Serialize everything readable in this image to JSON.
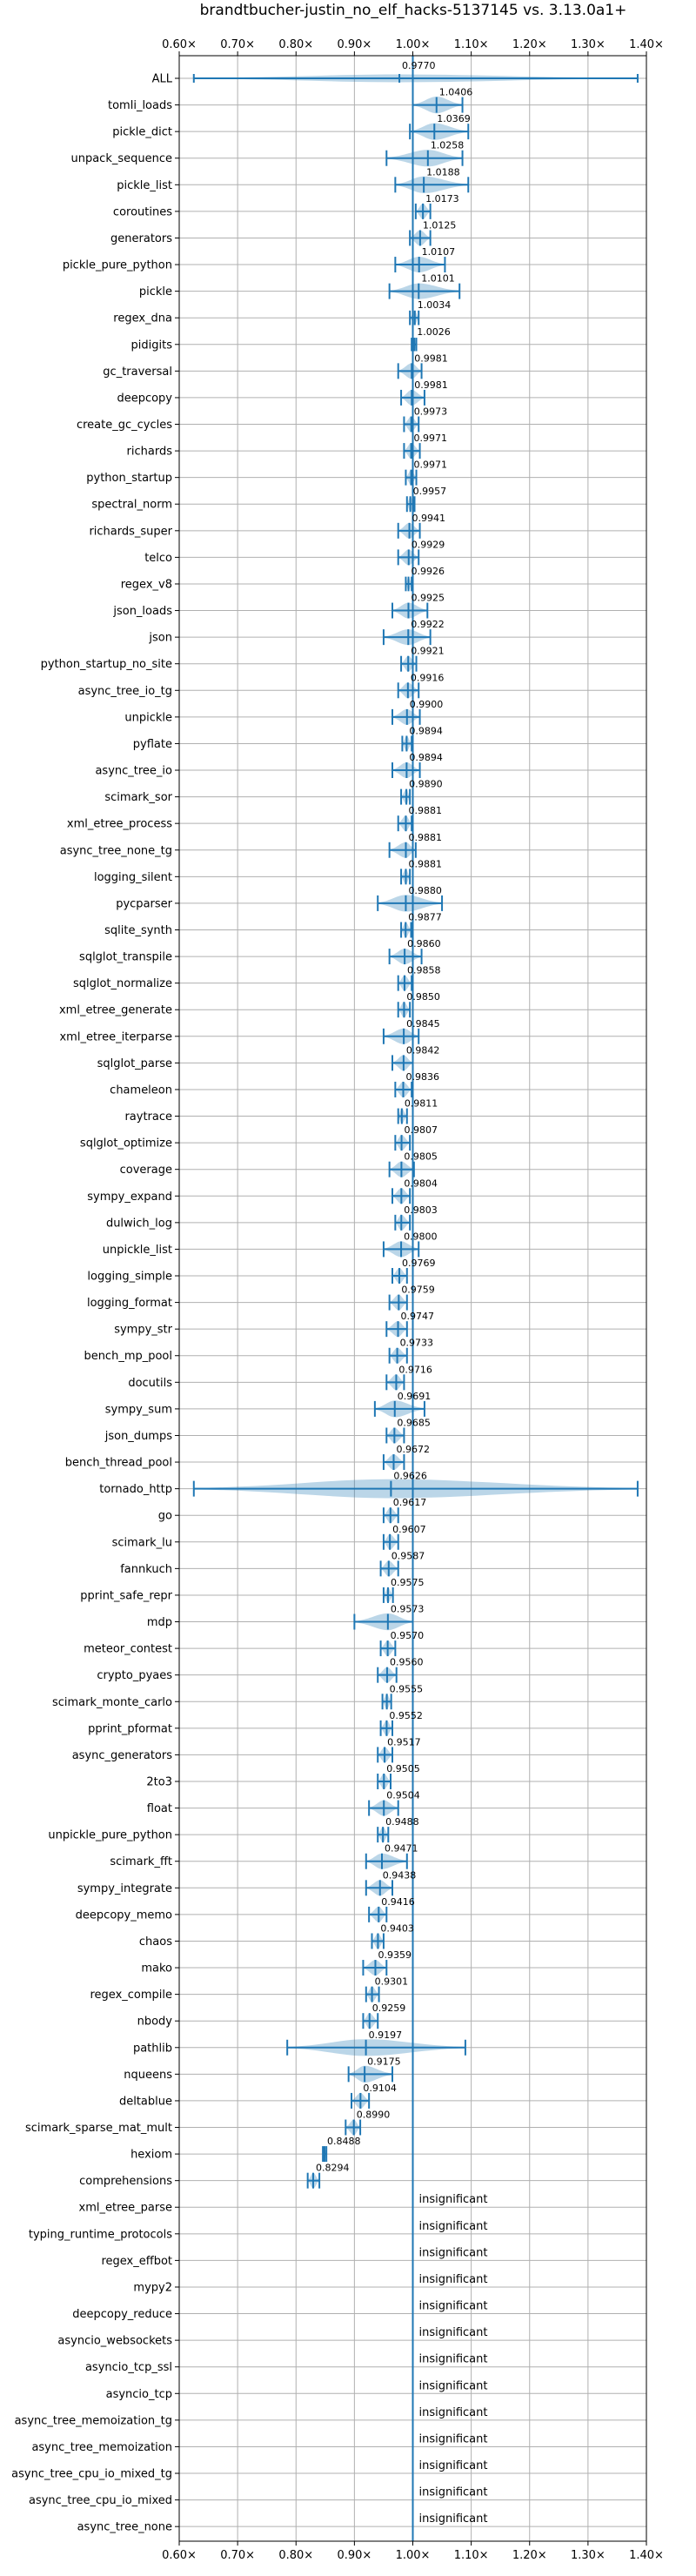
{
  "chart_data": {
    "type": "violin",
    "title": "brandtbucher-justin_no_elf_hacks-5137145 vs. 3.13.0a1+",
    "xlim": [
      0.6,
      1.4
    ],
    "xticks": [
      0.6,
      0.7,
      0.8,
      0.9,
      1.0,
      1.1,
      1.2,
      1.3,
      1.4
    ],
    "xtick_labels": [
      "0.60×",
      "0.70×",
      "0.80×",
      "0.90×",
      "1.00×",
      "1.10×",
      "1.20×",
      "1.30×",
      "1.40×"
    ],
    "reference_line": 1.0,
    "grid": true,
    "color": "#1f77b4",
    "insignificant_label": "insignificant",
    "benchmarks": [
      {
        "name": "ALL",
        "value": 0.977,
        "label": "0.9770",
        "min": 0.625,
        "max": 1.385,
        "w": 0.35
      },
      {
        "name": "tomli_loads",
        "value": 1.0406,
        "label": "1.0406",
        "min": 1.0,
        "max": 1.085,
        "w": 0.75
      },
      {
        "name": "pickle_dict",
        "value": 1.0369,
        "label": "1.0369",
        "min": 0.995,
        "max": 1.095,
        "w": 0.75
      },
      {
        "name": "unpack_sequence",
        "value": 1.0258,
        "label": "1.0258",
        "min": 0.955,
        "max": 1.085,
        "w": 0.75
      },
      {
        "name": "pickle_list",
        "value": 1.0188,
        "label": "1.0188",
        "min": 0.97,
        "max": 1.095,
        "w": 0.75
      },
      {
        "name": "coroutines",
        "value": 1.0173,
        "label": "1.0173",
        "min": 1.005,
        "max": 1.03,
        "w": 0.7
      },
      {
        "name": "generators",
        "value": 1.0125,
        "label": "1.0125",
        "min": 0.995,
        "max": 1.03,
        "w": 0.7
      },
      {
        "name": "pickle_pure_python",
        "value": 1.0107,
        "label": "1.0107",
        "min": 0.97,
        "max": 1.055,
        "w": 0.7
      },
      {
        "name": "pickle",
        "value": 1.0101,
        "label": "1.0101",
        "min": 0.96,
        "max": 1.08,
        "w": 0.7
      },
      {
        "name": "regex_dna",
        "value": 1.0034,
        "label": "1.0034",
        "min": 0.995,
        "max": 1.01,
        "w": 0.65
      },
      {
        "name": "pidigits",
        "value": 1.0026,
        "label": "1.0026",
        "min": 0.998,
        "max": 1.006,
        "w": 0.6
      },
      {
        "name": "gc_traversal",
        "value": 0.9981,
        "label": "0.9981",
        "min": 0.975,
        "max": 1.015,
        "w": 0.7
      },
      {
        "name": "deepcopy",
        "value": 0.9981,
        "label": "0.9981",
        "min": 0.98,
        "max": 1.02,
        "w": 0.7
      },
      {
        "name": "create_gc_cycles",
        "value": 0.9973,
        "label": "0.9973",
        "min": 0.985,
        "max": 1.01,
        "w": 0.7
      },
      {
        "name": "richards",
        "value": 0.9971,
        "label": "0.9971",
        "min": 0.985,
        "max": 1.012,
        "w": 0.7
      },
      {
        "name": "python_startup",
        "value": 0.9971,
        "label": "0.9971",
        "min": 0.988,
        "max": 1.006,
        "w": 0.7
      },
      {
        "name": "spectral_norm",
        "value": 0.9957,
        "label": "0.9957",
        "min": 0.99,
        "max": 1.003,
        "w": 0.7
      },
      {
        "name": "richards_super",
        "value": 0.9941,
        "label": "0.9941",
        "min": 0.975,
        "max": 1.012,
        "w": 0.7
      },
      {
        "name": "telco",
        "value": 0.9929,
        "label": "0.9929",
        "min": 0.975,
        "max": 1.01,
        "w": 0.7
      },
      {
        "name": "regex_v8",
        "value": 0.9926,
        "label": "0.9926",
        "min": 0.988,
        "max": 0.998,
        "w": 0.65
      },
      {
        "name": "json_loads",
        "value": 0.9925,
        "label": "0.9925",
        "min": 0.965,
        "max": 1.025,
        "w": 0.7
      },
      {
        "name": "json",
        "value": 0.9922,
        "label": "0.9922",
        "min": 0.95,
        "max": 1.03,
        "w": 0.7
      },
      {
        "name": "python_startup_no_site",
        "value": 0.9921,
        "label": "0.9921",
        "min": 0.98,
        "max": 1.006,
        "w": 0.7
      },
      {
        "name": "async_tree_io_tg",
        "value": 0.9916,
        "label": "0.9916",
        "min": 0.975,
        "max": 1.01,
        "w": 0.7
      },
      {
        "name": "unpickle",
        "value": 0.99,
        "label": "0.9900",
        "min": 0.965,
        "max": 1.012,
        "w": 0.7
      },
      {
        "name": "pyflate",
        "value": 0.9894,
        "label": "0.9894",
        "min": 0.982,
        "max": 0.998,
        "w": 0.7
      },
      {
        "name": "async_tree_io",
        "value": 0.9894,
        "label": "0.9894",
        "min": 0.965,
        "max": 1.012,
        "w": 0.7
      },
      {
        "name": "scimark_sor",
        "value": 0.989,
        "label": "0.9890",
        "min": 0.98,
        "max": 0.995,
        "w": 0.7
      },
      {
        "name": "xml_etree_process",
        "value": 0.9881,
        "label": "0.9881",
        "min": 0.975,
        "max": 0.998,
        "w": 0.7
      },
      {
        "name": "async_tree_none_tg",
        "value": 0.9881,
        "label": "0.9881",
        "min": 0.96,
        "max": 1.005,
        "w": 0.7
      },
      {
        "name": "logging_silent",
        "value": 0.9881,
        "label": "0.9881",
        "min": 0.98,
        "max": 0.995,
        "w": 0.7
      },
      {
        "name": "pycparser",
        "value": 0.988,
        "label": "0.9880",
        "min": 0.94,
        "max": 1.05,
        "w": 0.75
      },
      {
        "name": "sqlite_synth",
        "value": 0.9877,
        "label": "0.9877",
        "min": 0.98,
        "max": 0.997,
        "w": 0.7
      },
      {
        "name": "sqlglot_transpile",
        "value": 0.986,
        "label": "0.9860",
        "min": 0.96,
        "max": 1.015,
        "w": 0.7
      },
      {
        "name": "sqlglot_normalize",
        "value": 0.9858,
        "label": "0.9858",
        "min": 0.975,
        "max": 0.998,
        "w": 0.7
      },
      {
        "name": "xml_etree_generate",
        "value": 0.985,
        "label": "0.9850",
        "min": 0.975,
        "max": 0.995,
        "w": 0.7
      },
      {
        "name": "xml_etree_iterparse",
        "value": 0.9845,
        "label": "0.9845",
        "min": 0.95,
        "max": 1.01,
        "w": 0.7
      },
      {
        "name": "sqlglot_parse",
        "value": 0.9842,
        "label": "0.9842",
        "min": 0.965,
        "max": 1.0,
        "w": 0.7
      },
      {
        "name": "chameleon",
        "value": 0.9836,
        "label": "0.9836",
        "min": 0.97,
        "max": 0.998,
        "w": 0.7
      },
      {
        "name": "raytrace",
        "value": 0.9811,
        "label": "0.9811",
        "min": 0.975,
        "max": 0.99,
        "w": 0.7
      },
      {
        "name": "sqlglot_optimize",
        "value": 0.9807,
        "label": "0.9807",
        "min": 0.97,
        "max": 0.995,
        "w": 0.7
      },
      {
        "name": "coverage",
        "value": 0.9805,
        "label": "0.9805",
        "min": 0.96,
        "max": 1.002,
        "w": 0.7
      },
      {
        "name": "sympy_expand",
        "value": 0.9804,
        "label": "0.9804",
        "min": 0.965,
        "max": 0.995,
        "w": 0.7
      },
      {
        "name": "dulwich_log",
        "value": 0.9803,
        "label": "0.9803",
        "min": 0.97,
        "max": 0.995,
        "w": 0.7
      },
      {
        "name": "unpickle_list",
        "value": 0.98,
        "label": "0.9800",
        "min": 0.95,
        "max": 1.01,
        "w": 0.7
      },
      {
        "name": "logging_simple",
        "value": 0.9769,
        "label": "0.9769",
        "min": 0.965,
        "max": 0.99,
        "w": 0.7
      },
      {
        "name": "logging_format",
        "value": 0.9759,
        "label": "0.9759",
        "min": 0.96,
        "max": 0.99,
        "w": 0.7
      },
      {
        "name": "sympy_str",
        "value": 0.9747,
        "label": "0.9747",
        "min": 0.955,
        "max": 0.99,
        "w": 0.7
      },
      {
        "name": "bench_mp_pool",
        "value": 0.9733,
        "label": "0.9733",
        "min": 0.96,
        "max": 0.99,
        "w": 0.7
      },
      {
        "name": "docutils",
        "value": 0.9716,
        "label": "0.9716",
        "min": 0.955,
        "max": 0.985,
        "w": 0.7
      },
      {
        "name": "sympy_sum",
        "value": 0.9691,
        "label": "0.9691",
        "min": 0.935,
        "max": 1.02,
        "w": 0.75
      },
      {
        "name": "json_dumps",
        "value": 0.9685,
        "label": "0.9685",
        "min": 0.955,
        "max": 0.985,
        "w": 0.7
      },
      {
        "name": "bench_thread_pool",
        "value": 0.9672,
        "label": "0.9672",
        "min": 0.95,
        "max": 0.985,
        "w": 0.7
      },
      {
        "name": "tornado_http",
        "value": 0.9626,
        "label": "0.9626",
        "min": 0.625,
        "max": 1.385,
        "w": 0.85
      },
      {
        "name": "go",
        "value": 0.9617,
        "label": "0.9617",
        "min": 0.95,
        "max": 0.975,
        "w": 0.7
      },
      {
        "name": "scimark_lu",
        "value": 0.9607,
        "label": "0.9607",
        "min": 0.95,
        "max": 0.975,
        "w": 0.7
      },
      {
        "name": "fannkuch",
        "value": 0.9587,
        "label": "0.9587",
        "min": 0.945,
        "max": 0.975,
        "w": 0.7
      },
      {
        "name": "pprint_safe_repr",
        "value": 0.9575,
        "label": "0.9575",
        "min": 0.95,
        "max": 0.966,
        "w": 0.7
      },
      {
        "name": "mdp",
        "value": 0.9573,
        "label": "0.9573",
        "min": 0.9,
        "max": 1.0,
        "w": 0.75
      },
      {
        "name": "meteor_contest",
        "value": 0.957,
        "label": "0.9570",
        "min": 0.945,
        "max": 0.97,
        "w": 0.7
      },
      {
        "name": "crypto_pyaes",
        "value": 0.956,
        "label": "0.9560",
        "min": 0.94,
        "max": 0.972,
        "w": 0.7
      },
      {
        "name": "scimark_monte_carlo",
        "value": 0.9555,
        "label": "0.9555",
        "min": 0.948,
        "max": 0.963,
        "w": 0.7
      },
      {
        "name": "pprint_pformat",
        "value": 0.9552,
        "label": "0.9552",
        "min": 0.945,
        "max": 0.965,
        "w": 0.7
      },
      {
        "name": "async_generators",
        "value": 0.9517,
        "label": "0.9517",
        "min": 0.94,
        "max": 0.965,
        "w": 0.7
      },
      {
        "name": "2to3",
        "value": 0.9505,
        "label": "0.9505",
        "min": 0.94,
        "max": 0.962,
        "w": 0.7
      },
      {
        "name": "float",
        "value": 0.9504,
        "label": "0.9504",
        "min": 0.925,
        "max": 0.975,
        "w": 0.7
      },
      {
        "name": "unpickle_pure_python",
        "value": 0.9488,
        "label": "0.9488",
        "min": 0.94,
        "max": 0.958,
        "w": 0.7
      },
      {
        "name": "scimark_fft",
        "value": 0.9471,
        "label": "0.9471",
        "min": 0.92,
        "max": 0.99,
        "w": 0.7
      },
      {
        "name": "sympy_integrate",
        "value": 0.9438,
        "label": "0.9438",
        "min": 0.92,
        "max": 0.965,
        "w": 0.7
      },
      {
        "name": "deepcopy_memo",
        "value": 0.9416,
        "label": "0.9416",
        "min": 0.925,
        "max": 0.955,
        "w": 0.7
      },
      {
        "name": "chaos",
        "value": 0.9403,
        "label": "0.9403",
        "min": 0.93,
        "max": 0.95,
        "w": 0.7
      },
      {
        "name": "mako",
        "value": 0.9359,
        "label": "0.9359",
        "min": 0.915,
        "max": 0.955,
        "w": 0.7
      },
      {
        "name": "regex_compile",
        "value": 0.9301,
        "label": "0.9301",
        "min": 0.92,
        "max": 0.942,
        "w": 0.7
      },
      {
        "name": "nbody",
        "value": 0.9259,
        "label": "0.9259",
        "min": 0.915,
        "max": 0.94,
        "w": 0.7
      },
      {
        "name": "pathlib",
        "value": 0.9197,
        "label": "0.9197",
        "min": 0.785,
        "max": 1.09,
        "w": 0.75
      },
      {
        "name": "nqueens",
        "value": 0.9175,
        "label": "0.9175",
        "min": 0.89,
        "max": 0.965,
        "w": 0.75
      },
      {
        "name": "deltablue",
        "value": 0.9104,
        "label": "0.9104",
        "min": 0.895,
        "max": 0.925,
        "w": 0.7
      },
      {
        "name": "scimark_sparse_mat_mult",
        "value": 0.899,
        "label": "0.8990",
        "min": 0.885,
        "max": 0.91,
        "w": 0.7
      },
      {
        "name": "hexiom",
        "value": 0.8488,
        "label": "0.8488",
        "min": 0.846,
        "max": 0.852,
        "w": 0.7
      },
      {
        "name": "comprehensions",
        "value": 0.8294,
        "label": "0.8294",
        "min": 0.82,
        "max": 0.84,
        "w": 0.7
      },
      {
        "name": "xml_etree_parse",
        "insignificant": true
      },
      {
        "name": "typing_runtime_protocols",
        "insignificant": true
      },
      {
        "name": "regex_effbot",
        "insignificant": true
      },
      {
        "name": "mypy2",
        "insignificant": true
      },
      {
        "name": "deepcopy_reduce",
        "insignificant": true
      },
      {
        "name": "asyncio_websockets",
        "insignificant": true
      },
      {
        "name": "asyncio_tcp_ssl",
        "insignificant": true
      },
      {
        "name": "asyncio_tcp",
        "insignificant": true
      },
      {
        "name": "async_tree_memoization_tg",
        "insignificant": true
      },
      {
        "name": "async_tree_memoization",
        "insignificant": true
      },
      {
        "name": "async_tree_cpu_io_mixed_tg",
        "insignificant": true
      },
      {
        "name": "async_tree_cpu_io_mixed",
        "insignificant": true
      },
      {
        "name": "async_tree_none",
        "insignificant": true
      }
    ]
  }
}
